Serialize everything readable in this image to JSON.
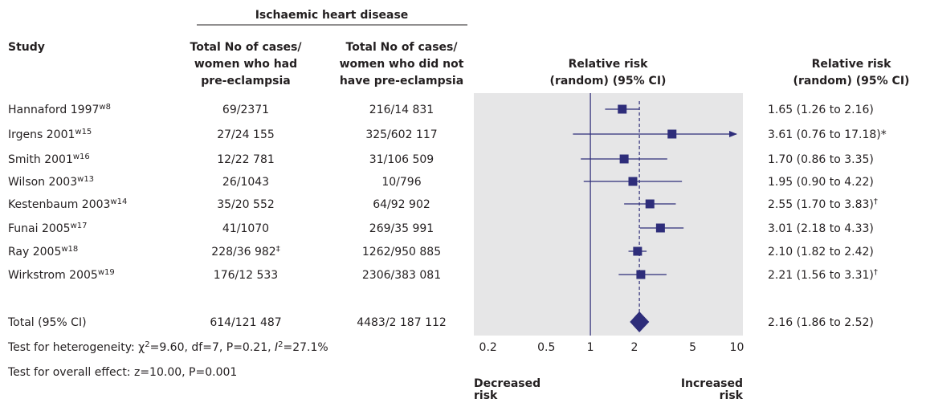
{
  "chart_data": {
    "type": "forest",
    "group_title": "Ischaemic heart disease",
    "headers": {
      "study": "Study",
      "cases_pre": [
        "Total No of cases/",
        "women who had",
        "pre-eclampsia"
      ],
      "cases_no": [
        "Total No of cases/",
        "women who did not",
        "have pre-eclampsia"
      ],
      "plot": [
        "Relative risk",
        "(random) (95% CI)"
      ],
      "rr": [
        "Relative risk",
        "(random) (95% CI)"
      ]
    },
    "studies": [
      {
        "name": "Hannaford 1997",
        "ref": "w8",
        "cases_pre": "69/2371",
        "cases_no": "216/14 831",
        "rr": 1.65,
        "lo": 1.26,
        "hi": 2.16,
        "label": "1.65 (1.26 to 2.16)"
      },
      {
        "name": "Irgens 2001",
        "ref": "w15",
        "cases_pre": "27/24 155",
        "cases_no": "325/602 117",
        "rr": 3.61,
        "lo": 0.76,
        "hi": 17.18,
        "label": "3.61 (0.76 to 17.18)*"
      },
      {
        "name": "Smith 2001",
        "ref": "w16",
        "cases_pre": "12/22 781",
        "cases_no": "31/106 509",
        "rr": 1.7,
        "lo": 0.86,
        "hi": 3.35,
        "label": "1.70 (0.86 to 3.35)"
      },
      {
        "name": "Wilson 2003",
        "ref": "w13",
        "cases_pre": "26/1043",
        "cases_no": "10/796",
        "rr": 1.95,
        "lo": 0.9,
        "hi": 4.22,
        "label": "1.95 (0.90 to 4.22)"
      },
      {
        "name": "Kestenbaum 2003",
        "ref": "w14",
        "cases_pre": "35/20 552",
        "cases_no": "64/92 902",
        "rr": 2.55,
        "lo": 1.7,
        "hi": 3.83,
        "label": "2.55 (1.70 to 3.83)",
        "label_note": "†"
      },
      {
        "name": "Funai 2005",
        "ref": "w17",
        "cases_pre": "41/1070",
        "cases_no": "269/35 991",
        "rr": 3.01,
        "lo": 2.18,
        "hi": 4.33,
        "label": "3.01 (2.18 to 4.33)"
      },
      {
        "name": "Ray 2005",
        "ref": "w18",
        "cases_pre": "228/36 982",
        "cases_pre_note": "‡",
        "cases_no": "1262/950 885",
        "rr": 2.1,
        "lo": 1.82,
        "hi": 2.42,
        "label": "2.10 (1.82 to 2.42)"
      },
      {
        "name": "Wirkstrom 2005",
        "ref": "w19",
        "cases_pre": "176/12 533",
        "cases_no": "2306/383 081",
        "rr": 2.21,
        "lo": 1.56,
        "hi": 3.31,
        "label": "2.21 (1.56 to 3.31)",
        "label_note": "†"
      }
    ],
    "total": {
      "name": "Total (95% CI)",
      "cases_pre": "614/121 487",
      "cases_no": "4483/2 187 112",
      "rr": 2.16,
      "lo": 1.86,
      "hi": 2.52,
      "label": "2.16 (1.86 to 2.52)"
    },
    "heterogeneity": {
      "prefix": "Test for heterogeneity: ",
      "chi": "χ",
      "chi_sup": "2",
      "middle": "=9.60, df=7, P=0.21, ",
      "i": "I",
      "i_sup": "2",
      "end": "=27.1%"
    },
    "overall": "Test for overall effect: z=10.00, P=0.001",
    "xlim": [
      0.16,
      11
    ],
    "xticks": [
      0.2,
      0.5,
      1,
      2,
      5,
      10
    ],
    "log_scale": true,
    "left_label": [
      "Decreased",
      "risk"
    ],
    "right_label": [
      "Increased",
      "risk"
    ],
    "color": "#2e2d7a"
  }
}
